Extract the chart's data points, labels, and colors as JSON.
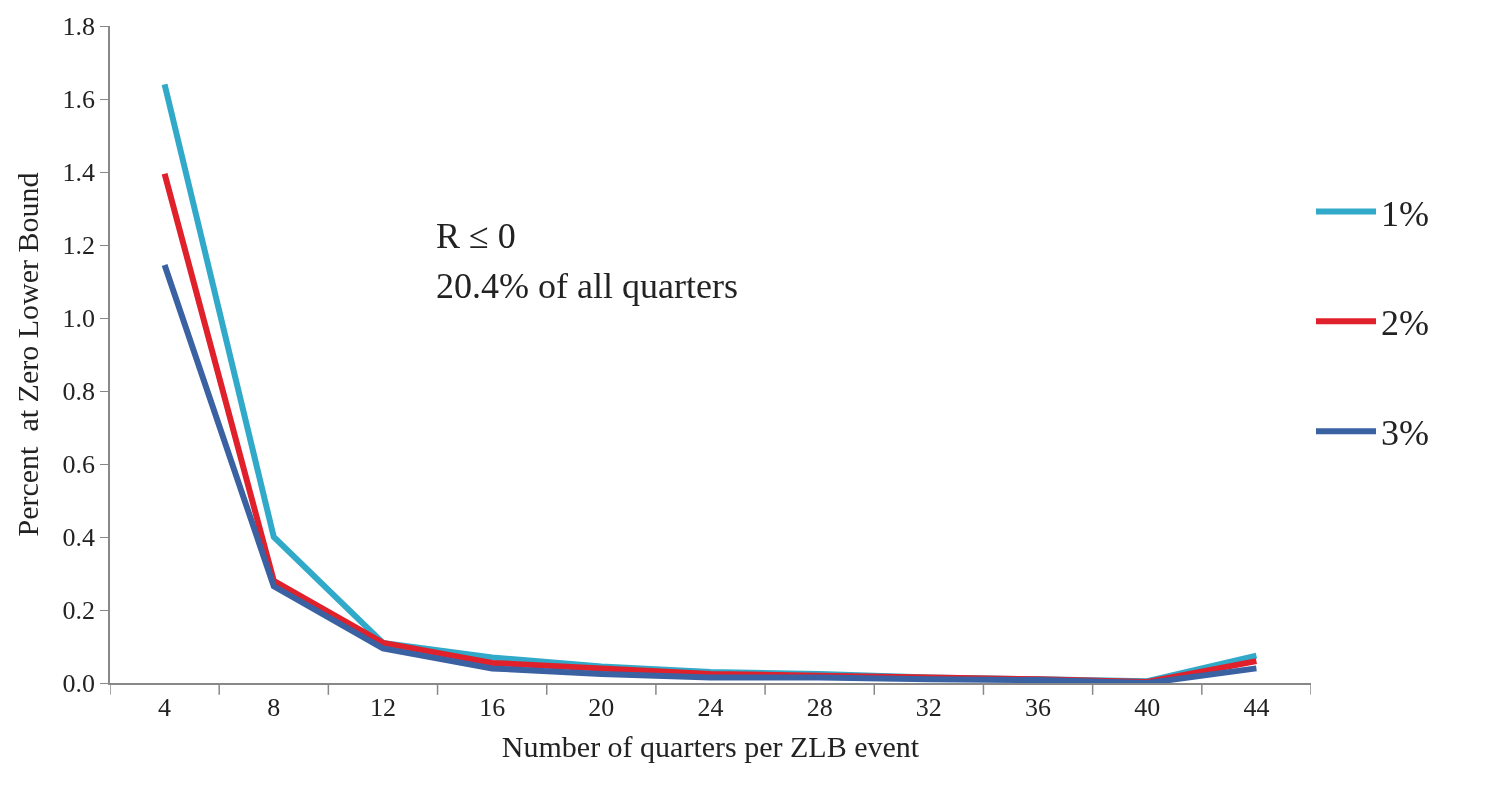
{
  "chart_data": {
    "type": "line",
    "xlabel": "Number of quarters per ZLB event",
    "ylabel": "Percent  at Zero Lower Bound",
    "categories": [
      "4",
      "8",
      "12",
      "16",
      "20",
      "24",
      "28",
      "32",
      "36",
      "40",
      "44"
    ],
    "series": [
      {
        "name": "1%",
        "color": "#31a9c9",
        "values": [
          1.64,
          0.4,
          0.11,
          0.07,
          0.045,
          0.03,
          0.025,
          0.015,
          0.01,
          0.005,
          0.075
        ]
      },
      {
        "name": "2%",
        "color": "#e0202a",
        "values": [
          1.395,
          0.28,
          0.11,
          0.055,
          0.04,
          0.025,
          0.02,
          0.015,
          0.01,
          0.003,
          0.06
        ]
      },
      {
        "name": "3%",
        "color": "#3a62a3",
        "values": [
          1.145,
          0.265,
          0.095,
          0.04,
          0.025,
          0.015,
          0.015,
          0.01,
          0.008,
          0.0,
          0.04
        ]
      }
    ],
    "ylim": [
      0,
      1.8
    ],
    "yticks": [
      {
        "value": 0,
        "label": "0.0"
      },
      0.2,
      0.4,
      0.6,
      0.8,
      {
        "value": 1,
        "label": "1.0"
      },
      1.2,
      1.4,
      1.6,
      1.8
    ],
    "annotations": [
      "R ≤ 0",
      "20.4% of all quarters"
    ],
    "legend": "right",
    "marker": "none",
    "line_style": "solid"
  }
}
